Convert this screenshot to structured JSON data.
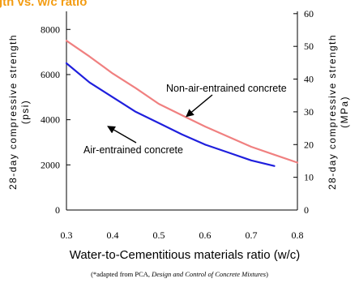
{
  "chart_data": {
    "type": "line",
    "title": "Strength vs. w/c ratio (partially visible)",
    "x": {
      "label": "Water-to-Cementitious materials ratio (w/c)",
      "min": 0.3,
      "max": 0.8,
      "ticks": [
        0.3,
        0.4,
        0.5,
        0.6,
        0.7,
        0.8
      ],
      "tick_labels": [
        "0.3",
        "0.4",
        "0.5",
        "0.6",
        "0.7",
        "0.8"
      ]
    },
    "y_left": {
      "label_line1": "28-day compressive strength",
      "label_line2": "(psi)",
      "min": 0,
      "max": 8800,
      "ticks": [
        0,
        2000,
        4000,
        6000,
        8000
      ],
      "tick_labels": [
        "0",
        "2000",
        "4000",
        "6000",
        "8000"
      ]
    },
    "y_right": {
      "label_line1": "28-day compressive strength",
      "label_line2": "(MPa)",
      "min": 0,
      "max": 60.7,
      "ticks": [
        0,
        10,
        20,
        30,
        40,
        50,
        60
      ],
      "tick_labels": [
        "0",
        "10",
        "20",
        "30",
        "40",
        "50",
        "60"
      ]
    },
    "grid": false,
    "series": [
      {
        "name": "Non-air-entrained concrete",
        "color": "#f08080",
        "x": [
          0.3,
          0.35,
          0.4,
          0.45,
          0.5,
          0.55,
          0.6,
          0.65,
          0.7,
          0.75,
          0.8
        ],
        "y": [
          7500,
          6800,
          6050,
          5400,
          4700,
          4200,
          3700,
          3250,
          2800,
          2450,
          2100
        ]
      },
      {
        "name": "Air-entrained concrete",
        "color": "#1f1fdd",
        "x": [
          0.3,
          0.35,
          0.4,
          0.45,
          0.5,
          0.55,
          0.6,
          0.65,
          0.7,
          0.75
        ],
        "y": [
          6500,
          5650,
          5000,
          4350,
          3850,
          3350,
          2900,
          2550,
          2200,
          1950
        ]
      }
    ],
    "annotations": [
      {
        "text": "Non-air-entrained concrete",
        "points_to_series": 0
      },
      {
        "text": "Air-entrained concrete",
        "points_to_series": 1
      }
    ]
  },
  "footnote": {
    "prefix": "(*adapted from PCA, ",
    "italic": "Design and Control of Concrete Mixtures",
    "suffix": ")"
  }
}
